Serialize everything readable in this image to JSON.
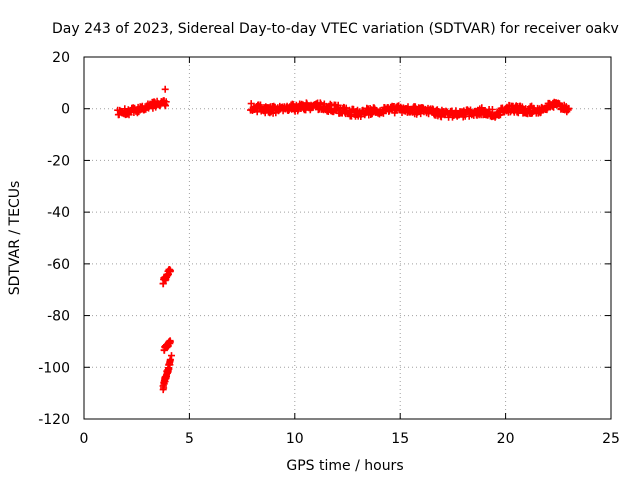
{
  "chart_data": {
    "type": "scatter",
    "title": "Day 243 of 2023, Sidereal Day-to-day VTEC variation (SDTVAR) for receiver oakv",
    "xlabel": "GPS time / hours",
    "ylabel": "SDTVAR / TECUs",
    "xlim": [
      0,
      25
    ],
    "ylim": [
      -120,
      20
    ],
    "xticks": [
      0,
      5,
      10,
      15,
      20,
      25
    ],
    "yticks": [
      20,
      0,
      -20,
      -40,
      -60,
      -80,
      -100,
      -120
    ],
    "grid": true,
    "marker": "+",
    "series": [
      {
        "name": "SDTVAR",
        "color": "#ff0000",
        "segments": [
          {
            "x_start": 1.6,
            "x_end": 3.9,
            "samples": 70,
            "y_points": [
              [
                1.6,
                -1.5
              ],
              [
                2.2,
                -1.0
              ],
              [
                2.8,
                0.0
              ],
              [
                3.3,
                1.5
              ],
              [
                3.9,
                2.0
              ]
            ],
            "spread": 2.5
          },
          {
            "x_start": 7.9,
            "x_end": 23.0,
            "samples": 480,
            "y_points": [
              [
                7.9,
                0.5
              ],
              [
                9.0,
                -0.5
              ],
              [
                10.0,
                0.5
              ],
              [
                11.0,
                1.0
              ],
              [
                12.0,
                0.0
              ],
              [
                12.6,
                -1.5
              ],
              [
                13.0,
                -2.0
              ],
              [
                13.6,
                -1.0
              ],
              [
                15.0,
                0.0
              ],
              [
                16.0,
                -1.0
              ],
              [
                17.0,
                -2.0
              ],
              [
                18.0,
                -2.0
              ],
              [
                19.0,
                -1.0
              ],
              [
                19.5,
                -2.0
              ],
              [
                20.0,
                0.0
              ],
              [
                21.0,
                -0.5
              ],
              [
                21.6,
                -0.5
              ],
              [
                22.3,
                1.5
              ],
              [
                23.0,
                0.0
              ]
            ],
            "spread": 3.0
          },
          {
            "x_start": 3.75,
            "x_end": 4.1,
            "samples": 28,
            "y_points": [
              [
                3.75,
                -67.0
              ],
              [
                3.9,
                -65.0
              ],
              [
                4.1,
                -62.0
              ]
            ],
            "spread": 2.0
          },
          {
            "x_start": 3.8,
            "x_end": 4.1,
            "samples": 22,
            "y_points": [
              [
                3.8,
                -93.0
              ],
              [
                4.1,
                -90.0
              ]
            ],
            "spread": 1.5
          },
          {
            "x_start": 3.75,
            "x_end": 4.1,
            "samples": 40,
            "y_points": [
              [
                3.75,
                -108.0
              ],
              [
                3.9,
                -103.0
              ],
              [
                4.1,
                -98.0
              ]
            ],
            "spread": 2.0
          }
        ],
        "points": [
          {
            "x": 3.85,
            "y": 7.5
          },
          {
            "x": 4.15,
            "y": -95.5
          }
        ]
      }
    ]
  }
}
